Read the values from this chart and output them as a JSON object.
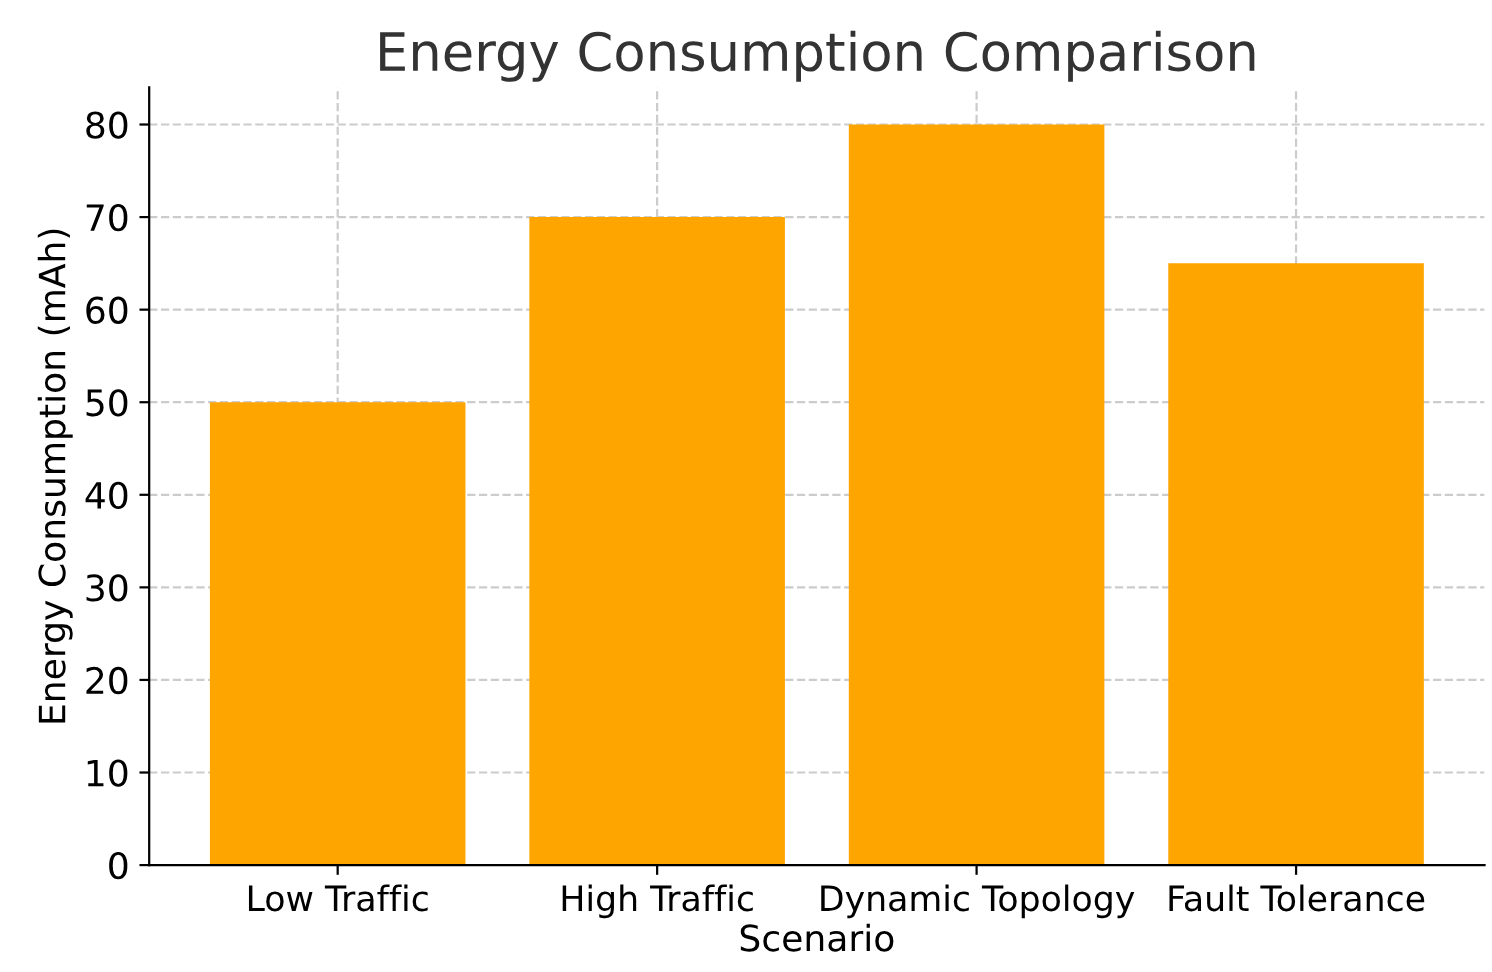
{
  "chart_data": {
    "type": "bar",
    "title": "Energy Consumption Comparison",
    "xlabel": "Scenario",
    "ylabel": "Energy Consumption (mAh)",
    "categories": [
      "Low Traffic",
      "High Traffic",
      "Dynamic Topology",
      "Fault Tolerance"
    ],
    "values": [
      50,
      70,
      80,
      65
    ],
    "color": "#ffa500",
    "ylim": [
      0,
      84
    ],
    "yticks": [
      0,
      10,
      20,
      30,
      40,
      50,
      60,
      70,
      80
    ],
    "grid": true
  }
}
